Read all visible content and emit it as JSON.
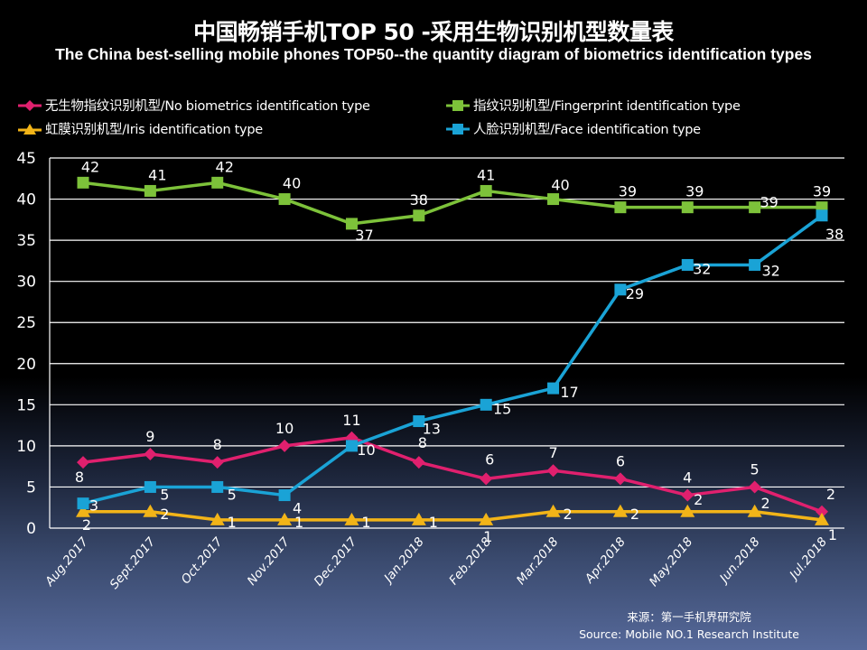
{
  "header": {
    "title_cn": "中国畅销手机TOP 50 -采用生物识别机型数量表",
    "title_en": "The China best-selling mobile phones TOP50--the quantity diagram of biometrics identification types"
  },
  "source": {
    "cn": "来源：第一手机界研究院",
    "en": "Source: Mobile NO.1 Research Institute"
  },
  "colors": {
    "no_biometrics": "#e0206e",
    "fingerprint": "#7dc23a",
    "iris": "#f2b418",
    "face": "#1aa3d6",
    "grid": "#ffffff"
  },
  "chart_data": {
    "type": "line",
    "title": "中国畅销手机TOP 50 -采用生物识别机型数量表",
    "subtitle": "The China best-selling mobile phones TOP50--the quantity diagram of biometrics identification types",
    "xlabel": "",
    "ylabel": "",
    "ylim": [
      0,
      45
    ],
    "yticks": [
      0,
      5,
      10,
      15,
      20,
      25,
      30,
      35,
      40,
      45
    ],
    "grid": true,
    "legend_position": "top",
    "categories": [
      "Aug.2017",
      "Sept.2017",
      "Oct.2017",
      "Nov.2017",
      "Dec.2017",
      "Jan.2018",
      "Feb.2018",
      "Mar.2018",
      "Apr.2018",
      "May.2018",
      "Jun.2018",
      "Jul.2018"
    ],
    "series": [
      {
        "key": "no_biometrics",
        "name": "无生物指纹识别机型/No biometrics identification type",
        "marker": "diamond",
        "values": [
          8,
          9,
          8,
          10,
          11,
          8,
          6,
          7,
          6,
          4,
          5,
          2
        ]
      },
      {
        "key": "fingerprint",
        "name": "指纹识别机型/Fingerprint identification type",
        "marker": "square",
        "values": [
          42,
          41,
          42,
          40,
          37,
          38,
          41,
          40,
          39,
          39,
          39,
          39
        ]
      },
      {
        "key": "iris",
        "name": "虹膜识别机型/Iris identification type",
        "marker": "triangle",
        "values": [
          2,
          2,
          1,
          1,
          1,
          1,
          1,
          2,
          2,
          2,
          2,
          1
        ]
      },
      {
        "key": "face",
        "name": "人脸识别机型/Face identification type",
        "marker": "square",
        "values": [
          3,
          5,
          5,
          4,
          10,
          13,
          15,
          17,
          29,
          32,
          32,
          38
        ]
      }
    ]
  }
}
